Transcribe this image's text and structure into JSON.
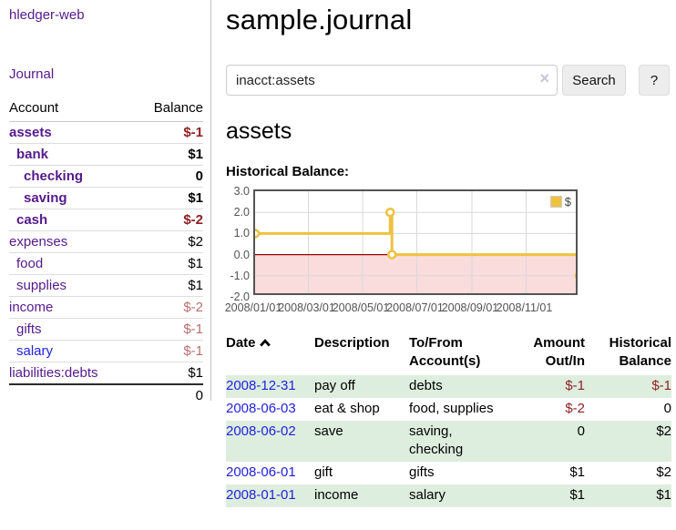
{
  "colors": {
    "link_visited_purple": "#551a8b",
    "link_blue": "#2222dd",
    "negative_strong_red": "#8f2025",
    "negative_muted_red": "#b96e6e",
    "row_highlight_green": "#deeede",
    "series_yellow": "#edc240",
    "negative_region_pink": "#fadcdc",
    "zero_line_red": "#a00000"
  },
  "sidebar": {
    "app_title": "hledger-web",
    "journal_label": "Journal",
    "accounts": {
      "headers": {
        "account": "Account",
        "balance": "Balance"
      },
      "rows": [
        {
          "name": "assets",
          "balance": "$-1",
          "indent": 0,
          "bold": true,
          "negative": true,
          "link_color": "purple"
        },
        {
          "name": "bank",
          "balance": "$1",
          "indent": 1,
          "bold": true,
          "negative": false,
          "link_color": "purple"
        },
        {
          "name": "checking",
          "balance": "0",
          "indent": 2,
          "bold": true,
          "negative": false,
          "link_color": "purple"
        },
        {
          "name": "saving",
          "balance": "$1",
          "indent": 2,
          "bold": true,
          "negative": false,
          "link_color": "purple"
        },
        {
          "name": "cash",
          "balance": "$-2",
          "indent": 1,
          "bold": true,
          "negative": true,
          "link_color": "purple"
        },
        {
          "name": "expenses",
          "balance": "$2",
          "indent": 0,
          "bold": false,
          "negative": false,
          "link_color": "purple"
        },
        {
          "name": "food",
          "balance": "$1",
          "indent": 1,
          "bold": false,
          "negative": false,
          "link_color": "purple"
        },
        {
          "name": "supplies",
          "balance": "$1",
          "indent": 1,
          "bold": false,
          "negative": false,
          "link_color": "purple"
        },
        {
          "name": "income",
          "balance": "$-2",
          "indent": 0,
          "bold": false,
          "negative": true,
          "link_color": "purple"
        },
        {
          "name": "gifts",
          "balance": "$-1",
          "indent": 1,
          "bold": false,
          "negative": true,
          "link_color": "purple"
        },
        {
          "name": "salary",
          "balance": "$-1",
          "indent": 1,
          "bold": false,
          "negative": true,
          "link_color": "blue"
        },
        {
          "name": "liabilities:debts",
          "balance": "$1",
          "indent": 0,
          "bold": false,
          "negative": false,
          "link_color": "purple"
        }
      ],
      "total": "0"
    }
  },
  "header": {
    "title": "sample.journal"
  },
  "search": {
    "query": "inacct:assets",
    "clear_icon": "×",
    "button_label": "Search",
    "help_label": "?"
  },
  "account_view": {
    "heading": "assets",
    "chart_label": "Historical Balance:"
  },
  "chart_data": {
    "type": "line",
    "step": true,
    "title": "Historical Balance",
    "x_start": "2008-01-01",
    "x_span_days": 365,
    "ylim": [
      -2,
      3
    ],
    "yticks": [
      3.0,
      2.0,
      1.0,
      0.0,
      -1.0,
      -2.0
    ],
    "xticks": [
      "2008/01/01",
      "2008/03/01",
      "2008/05/01",
      "2008/07/01",
      "2008/09/01",
      "2008/11/01"
    ],
    "grid": true,
    "legend_position": "top-right",
    "negative_fill": "#fadcdc",
    "zero_line_color": "#a00000",
    "grid_color": "#d9d9d9",
    "series": [
      {
        "name": "$",
        "color": "#edc240",
        "points": [
          [
            "2008-01-01",
            1
          ],
          [
            "2008-06-01",
            2
          ],
          [
            "2008-06-03",
            0
          ],
          [
            "2008-12-31",
            -1
          ]
        ]
      }
    ]
  },
  "transactions": {
    "headers": {
      "date": "Date",
      "description": "Description",
      "account": "To/From\nAccount(s)",
      "amount": "Amount\nOut/In",
      "balance": "Historical\nBalance"
    },
    "sort": "ascending",
    "rows": [
      {
        "date": "2008-12-31",
        "description": "pay off",
        "account": "debts",
        "amount": "$-1",
        "amount_negative": true,
        "balance": "$-1",
        "balance_negative": true,
        "highlight": true
      },
      {
        "date": "2008-06-03",
        "description": "eat & shop",
        "account": "food, supplies",
        "amount": "$-2",
        "amount_negative": true,
        "balance": "0",
        "balance_negative": false,
        "highlight": false
      },
      {
        "date": "2008-06-02",
        "description": "save",
        "account": "saving,\nchecking",
        "amount": "0",
        "amount_negative": false,
        "balance": "$2",
        "balance_negative": false,
        "highlight": true
      },
      {
        "date": "2008-06-01",
        "description": "gift",
        "account": "gifts",
        "amount": "$1",
        "amount_negative": false,
        "balance": "$2",
        "balance_negative": false,
        "highlight": false
      },
      {
        "date": "2008-01-01",
        "description": "income",
        "account": "salary",
        "amount": "$1",
        "amount_negative": false,
        "balance": "$1",
        "balance_negative": false,
        "highlight": true
      }
    ]
  }
}
